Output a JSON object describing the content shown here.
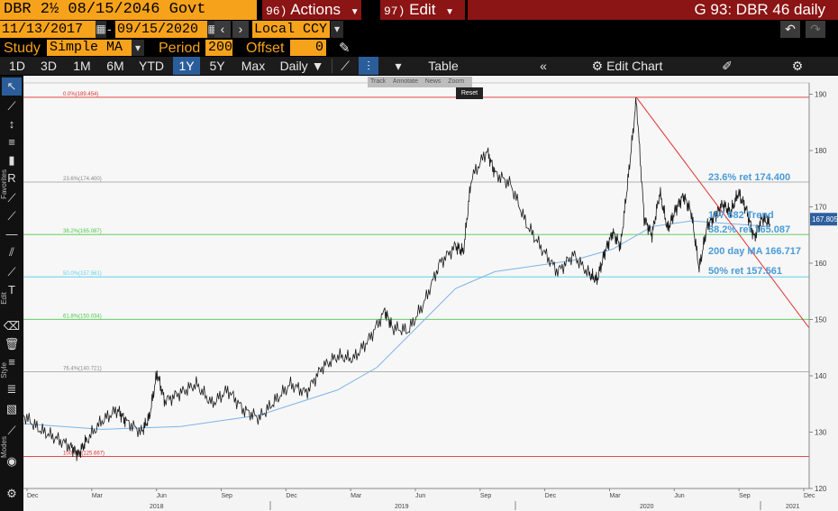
{
  "header": {
    "security": "DBR 2½ 08/15/2046 Govt",
    "actions_num": "96)",
    "actions_label": "Actions",
    "edit_num": "97)",
    "edit_label": "Edit",
    "chart_title": "G 93: DBR 46 daily"
  },
  "range": {
    "start_date": "11/13/2017",
    "end_date": "09/15/2020",
    "currency": "Local CCY"
  },
  "study": {
    "label": "Study",
    "value": "Simple MA",
    "period_label": "Period",
    "period_value": "200",
    "offset_label": "Offset",
    "offset_value": "0"
  },
  "toolbar": {
    "periods": [
      "1D",
      "3D",
      "1M",
      "6M",
      "YTD",
      "1Y",
      "5Y",
      "Max"
    ],
    "active_period": "1Y",
    "frequency": "Daily",
    "table_label": "Table",
    "edit_chart_label": "Edit Chart"
  },
  "mini_toolbar": [
    "Track",
    "Annotate",
    "News",
    "Zoom"
  ],
  "reset_label": "Reset",
  "left_labels": {
    "favorites": "Favorites",
    "edit": "Edit",
    "style": "Style",
    "modes": "Modes"
  },
  "colors": {
    "orange": "#f7a21b",
    "red_bar": "#8b1414",
    "fib_red": "#e03030",
    "fib_green": "#4cc84c",
    "fib_cyan": "#5fd2e8",
    "fib_gray": "#b0b0b0",
    "ma_blue": "#7db4e6",
    "annot_blue": "#4a9ad8"
  },
  "chart_data": {
    "type": "line",
    "ylim": [
      120,
      192
    ],
    "y_ticks": [
      120,
      130,
      140,
      150,
      160,
      170,
      180,
      190
    ],
    "x_ticks": [
      "Dec",
      "Mar",
      "Jun",
      "Sep",
      "Dec",
      "Mar",
      "Jun",
      "Sep",
      "Dec",
      "Mar",
      "Jun",
      "Sep",
      "Dec"
    ],
    "years": [
      "2018",
      "2019",
      "2020",
      "2021"
    ],
    "last_price": "167.805",
    "fib_levels": [
      {
        "label": "0.0%(189.454)",
        "value": 189.454,
        "color": "#e03030"
      },
      {
        "label": "23.6%(174.400)",
        "value": 174.4,
        "color": "#b0b0b0"
      },
      {
        "label": "38.2%(165.087)",
        "value": 165.087,
        "color": "#4cc84c"
      },
      {
        "label": "50.0%(157.561)",
        "value": 157.561,
        "color": "#5fd2e8"
      },
      {
        "label": "61.8%(150.034)",
        "value": 150.034,
        "color": "#4cc84c"
      },
      {
        "label": "76.4%(140.721)",
        "value": 140.721,
        "color": "#b0b0b0"
      },
      {
        "label": "100.0%(125.667)",
        "value": 125.667,
        "color": "#e03030"
      }
    ],
    "annotations": [
      {
        "text": "23.6% ret 174.400",
        "value": 174.4
      },
      {
        "text": "167.682 Trend",
        "value": 167.682
      },
      {
        "text": "38.2% ret 165.087",
        "value": 165.087
      },
      {
        "text": "200 day MA 166.717",
        "value": 166.717
      },
      {
        "text": "50% ret 157.561",
        "value": 157.561
      }
    ],
    "price_series": [
      [
        0.0,
        133.0
      ],
      [
        0.02,
        130.5
      ],
      [
        0.04,
        129.0
      ],
      [
        0.06,
        127.5
      ],
      [
        0.07,
        126.0
      ],
      [
        0.08,
        128.5
      ],
      [
        0.1,
        132.0
      ],
      [
        0.12,
        134.0
      ],
      [
        0.13,
        132.0
      ],
      [
        0.15,
        130.0
      ],
      [
        0.16,
        132.5
      ],
      [
        0.17,
        140.5
      ],
      [
        0.18,
        135.5
      ],
      [
        0.2,
        137.0
      ],
      [
        0.22,
        138.5
      ],
      [
        0.24,
        135.0
      ],
      [
        0.26,
        137.5
      ],
      [
        0.28,
        134.0
      ],
      [
        0.3,
        132.5
      ],
      [
        0.32,
        135.5
      ],
      [
        0.34,
        138.5
      ],
      [
        0.36,
        137.0
      ],
      [
        0.38,
        141.5
      ],
      [
        0.4,
        143.5
      ],
      [
        0.42,
        143.0
      ],
      [
        0.44,
        146.5
      ],
      [
        0.46,
        151.5
      ],
      [
        0.47,
        148.5
      ],
      [
        0.49,
        148.0
      ],
      [
        0.51,
        153.0
      ],
      [
        0.53,
        160.0
      ],
      [
        0.55,
        163.0
      ],
      [
        0.56,
        162.0
      ],
      [
        0.57,
        175.0
      ],
      [
        0.59,
        180.0
      ],
      [
        0.6,
        176.0
      ],
      [
        0.62,
        174.0
      ],
      [
        0.64,
        167.0
      ],
      [
        0.66,
        162.5
      ],
      [
        0.68,
        158.5
      ],
      [
        0.7,
        161.5
      ],
      [
        0.72,
        158.0
      ],
      [
        0.73,
        157.0
      ],
      [
        0.74,
        162.0
      ],
      [
        0.75,
        165.5
      ],
      [
        0.76,
        163.0
      ],
      [
        0.77,
        175.5
      ],
      [
        0.78,
        189.0
      ],
      [
        0.79,
        168.0
      ],
      [
        0.8,
        165.0
      ],
      [
        0.81,
        172.5
      ],
      [
        0.82,
        166.0
      ],
      [
        0.83,
        169.5
      ],
      [
        0.84,
        172.0
      ],
      [
        0.85,
        169.0
      ],
      [
        0.86,
        159.0
      ],
      [
        0.87,
        166.5
      ],
      [
        0.88,
        168.5
      ],
      [
        0.89,
        170.5
      ],
      [
        0.9,
        169.0
      ],
      [
        0.91,
        172.5
      ],
      [
        0.92,
        169.5
      ],
      [
        0.93,
        164.5
      ],
      [
        0.94,
        168.0
      ],
      [
        0.95,
        167.0
      ]
    ],
    "ma_series": [
      [
        0.0,
        131.5
      ],
      [
        0.1,
        130.5
      ],
      [
        0.2,
        131.0
      ],
      [
        0.3,
        133.0
      ],
      [
        0.4,
        137.5
      ],
      [
        0.45,
        141.5
      ],
      [
        0.5,
        148.5
      ],
      [
        0.55,
        155.5
      ],
      [
        0.6,
        158.5
      ],
      [
        0.65,
        159.5
      ],
      [
        0.7,
        160.5
      ],
      [
        0.75,
        162.5
      ],
      [
        0.8,
        166.5
      ],
      [
        0.85,
        167.5
      ],
      [
        0.9,
        167.0
      ],
      [
        0.95,
        166.5
      ]
    ],
    "trend_line": {
      "from": [
        0.78,
        189.454
      ],
      "to": [
        1.0,
        148.5
      ]
    }
  }
}
